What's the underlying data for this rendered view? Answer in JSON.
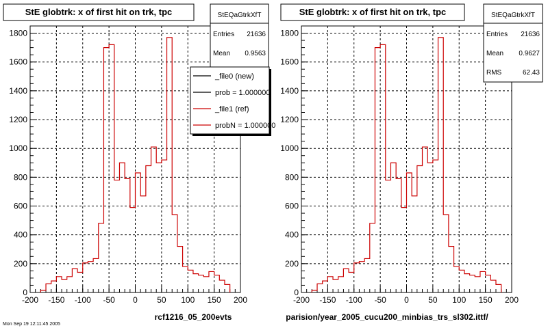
{
  "panels": [
    {
      "title": "StE globtrk: x of first hit on trk, tpc",
      "stats": {
        "name": "StEQaGtrkXfT",
        "rows": [
          {
            "label": "Entries",
            "value": "21636"
          },
          {
            "label": "Mean",
            "value": "0.9563"
          }
        ]
      },
      "legend": [
        {
          "label": "_file0 (new)",
          "color": "#000000"
        },
        {
          "label": "prob = 1.000000",
          "color": "#000000"
        },
        {
          "label": "_file1 (ref)",
          "color": "#cc0000"
        },
        {
          "label": "probN = 1.000000",
          "color": "#cc0000"
        }
      ],
      "caption": "rcf1216_05_200evts"
    },
    {
      "title": "StE globtrk: x of first hit on trk, tpc",
      "stats": {
        "name": "StEQaGtrkXfT",
        "rows": [
          {
            "label": "Entries",
            "value": "21636"
          },
          {
            "label": "Mean",
            "value": "0.9627"
          },
          {
            "label": "RMS",
            "value": "62.43"
          }
        ]
      },
      "legend": [],
      "caption": "parision/year_2005_cucu200_minbias_trs_sl302.ittf/"
    }
  ],
  "footer_text": "Mon Sep 19 12:11:45 2005",
  "chart_data": [
    {
      "type": "histogram",
      "title": "StE globtrk: x of first hit on trk, tpc",
      "xlim": [
        -200,
        200
      ],
      "ylim": [
        0,
        1850
      ],
      "x_ticks": [
        -200,
        -150,
        -100,
        -50,
        0,
        50,
        100,
        150,
        200
      ],
      "y_ticks": [
        0,
        200,
        400,
        600,
        800,
        1000,
        1200,
        1400,
        1600,
        1800
      ],
      "grid": true,
      "bin_edges": [
        -180,
        -170,
        -160,
        -150,
        -140,
        -130,
        -120,
        -110,
        -100,
        -90,
        -80,
        -70,
        -60,
        -50,
        -40,
        -30,
        -20,
        -10,
        0,
        10,
        20,
        30,
        40,
        50,
        60,
        70,
        80,
        90,
        100,
        110,
        120,
        130,
        140,
        150,
        160,
        170,
        180
      ],
      "series": [
        {
          "color": "#cc0000",
          "values": [
            15,
            60,
            80,
            110,
            90,
            110,
            165,
            140,
            205,
            215,
            235,
            480,
            1700,
            1720,
            780,
            900,
            790,
            590,
            830,
            670,
            880,
            1010,
            900,
            920,
            1770,
            540,
            320,
            180,
            155,
            130,
            120,
            110,
            145,
            120,
            85,
            55
          ]
        }
      ]
    },
    {
      "type": "histogram",
      "title": "StE globtrk: x of first hit on trk, tpc",
      "xlim": [
        -200,
        200
      ],
      "ylim": [
        0,
        1850
      ],
      "x_ticks": [
        -200,
        -150,
        -100,
        -50,
        0,
        50,
        100,
        150,
        200
      ],
      "y_ticks": [
        0,
        200,
        400,
        600,
        800,
        1000,
        1200,
        1400,
        1600,
        1800
      ],
      "grid": true,
      "bin_edges": [
        -180,
        -170,
        -160,
        -150,
        -140,
        -130,
        -120,
        -110,
        -100,
        -90,
        -80,
        -70,
        -60,
        -50,
        -40,
        -30,
        -20,
        -10,
        0,
        10,
        20,
        30,
        40,
        50,
        60,
        70,
        80,
        90,
        100,
        110,
        120,
        130,
        140,
        150,
        160,
        170,
        180
      ],
      "series": [
        {
          "color": "#cc0000",
          "values": [
            15,
            60,
            80,
            110,
            90,
            110,
            165,
            140,
            205,
            215,
            235,
            480,
            1700,
            1720,
            780,
            900,
            790,
            590,
            830,
            670,
            880,
            1010,
            900,
            920,
            1770,
            540,
            320,
            180,
            155,
            130,
            120,
            110,
            145,
            120,
            85,
            55
          ]
        }
      ]
    }
  ]
}
